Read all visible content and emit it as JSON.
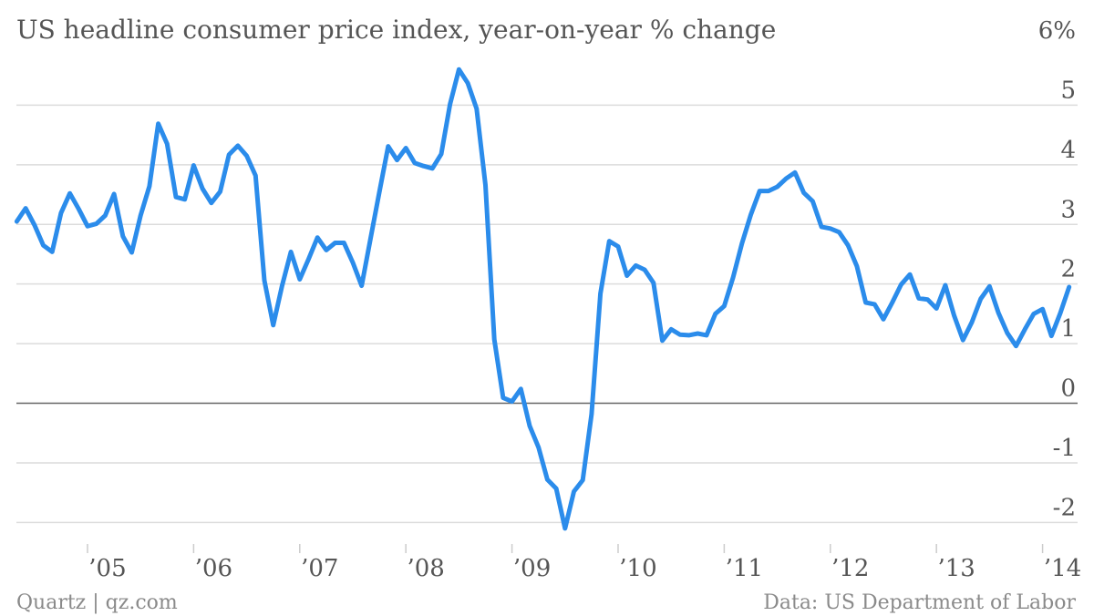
{
  "chart_data": {
    "type": "line",
    "title": "US headline consumer price index, year-on-year % change",
    "source_left": "Quartz | qz.com",
    "source_right": "Data: US Department of Labor",
    "y_ticks": [
      "-2",
      "-1",
      "0",
      "1",
      "2",
      "3",
      "4",
      "5",
      "6%"
    ],
    "y_tick_values": [
      -2,
      -1,
      0,
      1,
      2,
      3,
      4,
      5,
      6
    ],
    "ylim": [
      -2.3,
      6
    ],
    "xlim": [
      2004.33,
      2014.33
    ],
    "x_ticks": [
      {
        "label": "’05",
        "value": 2005
      },
      {
        "label": "’06",
        "value": 2006
      },
      {
        "label": "’07",
        "value": 2007
      },
      {
        "label": "’08",
        "value": 2008
      },
      {
        "label": "’09",
        "value": 2009
      },
      {
        "label": "’10",
        "value": 2010
      },
      {
        "label": "’11",
        "value": 2011
      },
      {
        "label": "’12",
        "value": 2012
      },
      {
        "label": "’13",
        "value": 2013
      },
      {
        "label": "’14",
        "value": 2014
      }
    ],
    "grid": true,
    "line_color": "#2b8ceb",
    "series": [
      {
        "start": "2004-05",
        "values": [
          3.05,
          3.27,
          2.99,
          2.65,
          2.54,
          3.19,
          3.52,
          3.26,
          2.97,
          3.01,
          3.15,
          3.51,
          2.8,
          2.53,
          3.15,
          3.64,
          4.69,
          4.35,
          3.46,
          3.42,
          3.99,
          3.6,
          3.36,
          3.55,
          4.17,
          4.32,
          4.15,
          3.82,
          2.06,
          1.31,
          1.97,
          2.54,
          2.08,
          2.42,
          2.78,
          2.57,
          2.69,
          2.69,
          2.36,
          1.97,
          2.76,
          3.54,
          4.31,
          4.08,
          4.28,
          4.03,
          3.98,
          3.94,
          4.18,
          5.02,
          5.6,
          5.37,
          4.94,
          3.66,
          1.07,
          0.09,
          0.03,
          0.24,
          -0.38,
          -0.74,
          -1.28,
          -1.43,
          -2.1,
          -1.48,
          -1.29,
          -0.18,
          1.84,
          2.72,
          2.63,
          2.14,
          2.31,
          2.24,
          2.02,
          1.05,
          1.24,
          1.15,
          1.14,
          1.17,
          1.14,
          1.5,
          1.63,
          2.11,
          2.68,
          3.16,
          3.56,
          3.56,
          3.63,
          3.77,
          3.87,
          3.53,
          3.39,
          2.96,
          2.93,
          2.87,
          2.65,
          2.3,
          1.69,
          1.66,
          1.41,
          1.69,
          1.99,
          2.16,
          1.76,
          1.74,
          1.59,
          1.98,
          1.47,
          1.06,
          1.36,
          1.75,
          1.96,
          1.52,
          1.18,
          0.96,
          1.24,
          1.5,
          1.58,
          1.13,
          1.51,
          1.95
        ]
      }
    ]
  }
}
